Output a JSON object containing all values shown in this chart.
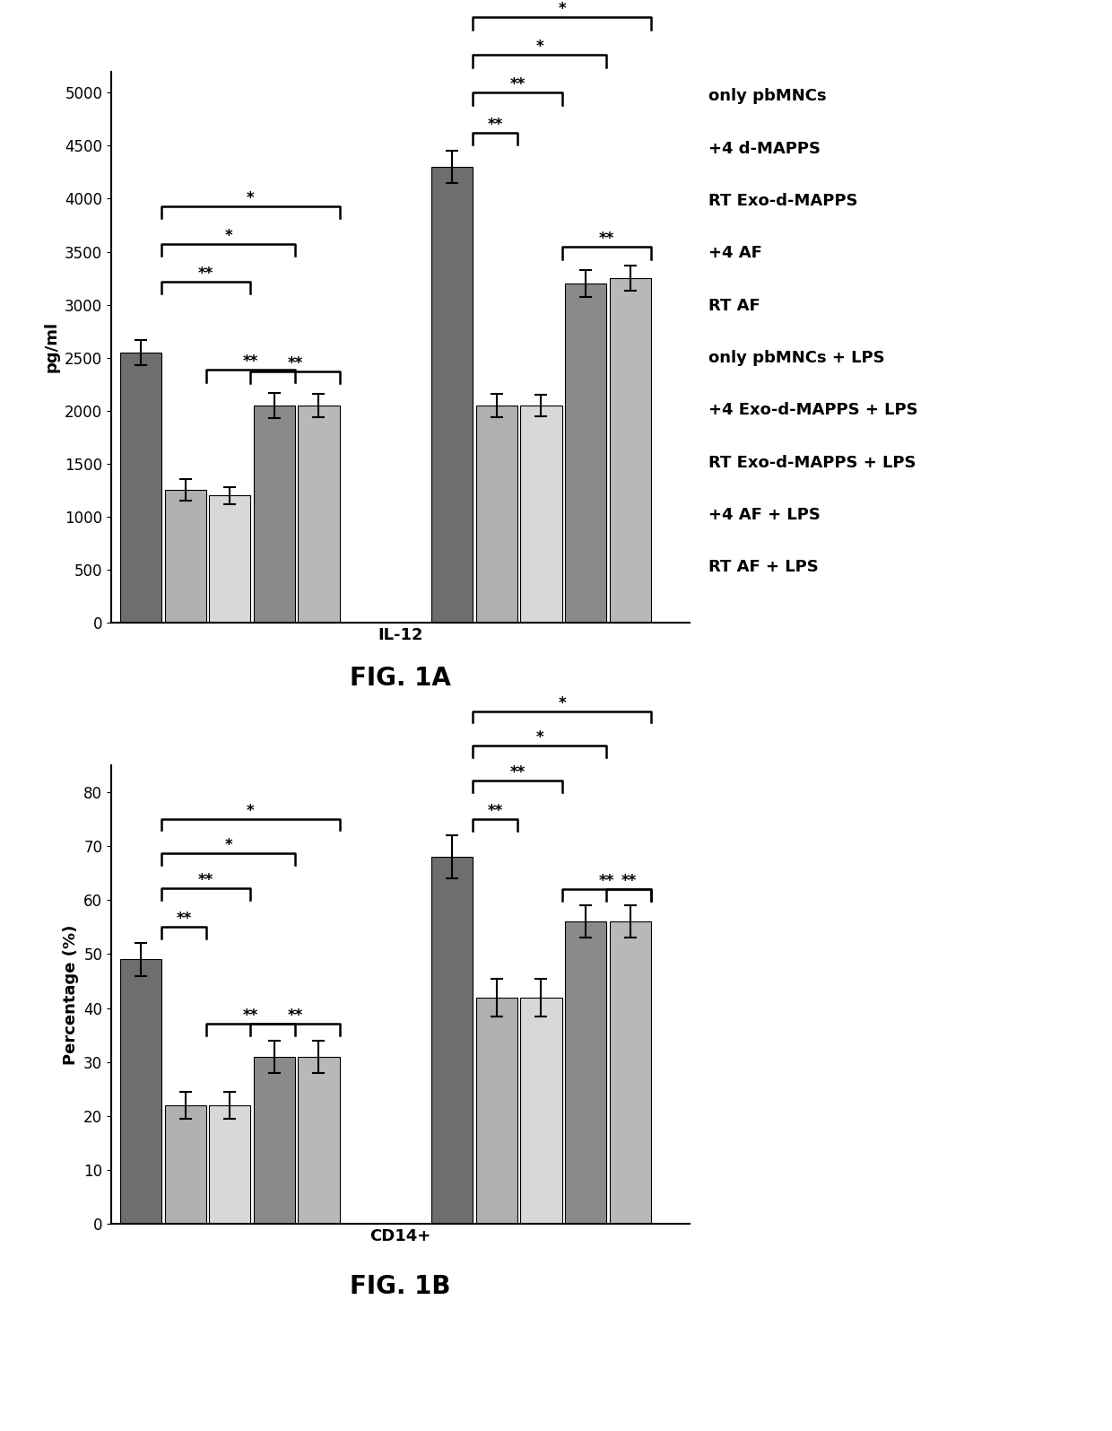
{
  "fig1a": {
    "title": "IL-12",
    "ylabel": "pg/ml",
    "ylim": [
      0,
      5200
    ],
    "yticks": [
      0,
      500,
      1000,
      1500,
      2000,
      2500,
      3000,
      3500,
      4000,
      4500,
      5000
    ],
    "values": [
      2550,
      1250,
      1200,
      2050,
      2050,
      4300,
      2050,
      2050,
      3200,
      3250
    ],
    "errors": [
      120,
      100,
      80,
      120,
      110,
      150,
      110,
      100,
      130,
      120
    ],
    "colors": [
      "#6e6e6e",
      "#b0b0b0",
      "#d8d8d8",
      "#8a8a8a",
      "#b8b8b8",
      "#6e6e6e",
      "#b0b0b0",
      "#d8d8d8",
      "#8a8a8a",
      "#b8b8b8"
    ]
  },
  "fig1b": {
    "title": "CD14+",
    "ylabel": "Percentage (%)",
    "ylim": [
      0,
      85
    ],
    "yticks": [
      0,
      10,
      20,
      30,
      40,
      50,
      60,
      70,
      80
    ],
    "values": [
      49,
      22,
      22,
      31,
      31,
      68,
      42,
      42,
      56,
      56
    ],
    "errors": [
      3,
      2.5,
      2.5,
      3,
      3,
      4,
      3.5,
      3.5,
      3,
      3
    ],
    "colors": [
      "#6e6e6e",
      "#b0b0b0",
      "#d8d8d8",
      "#8a8a8a",
      "#b8b8b8",
      "#6e6e6e",
      "#b0b0b0",
      "#d8d8d8",
      "#8a8a8a",
      "#b8b8b8"
    ]
  },
  "legend_labels": [
    "only pbMNCs",
    "+4 d-MAPPS",
    "RT Exo-d-MAPPS",
    "+4 AF",
    "RT AF",
    "only pbMNCs + LPS",
    "+4 Exo-d-MAPPS + LPS",
    "RT Exo-d-MAPPS + LPS",
    "+4 AF + LPS",
    "RT AF + LPS"
  ],
  "fig_title_a": "FIG. 1A",
  "fig_title_b": "FIG. 1B",
  "background_color": "#ffffff"
}
